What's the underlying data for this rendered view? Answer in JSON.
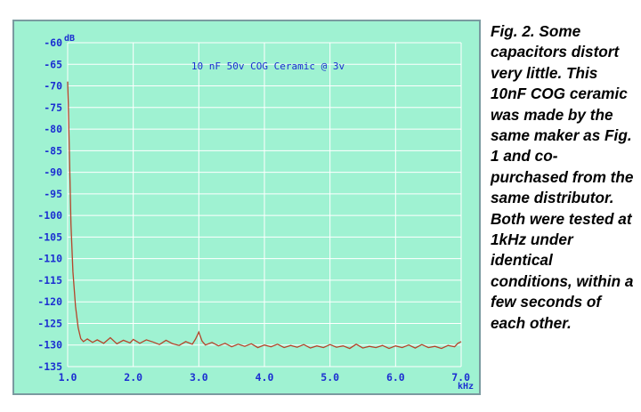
{
  "colors": {
    "plot_background": "#9ff2d2",
    "grid": "#ffffff",
    "tick_text": "#1c2fd1",
    "trace": "#b5442a",
    "frame": "#7a9aa0"
  },
  "caption": "Fig. 2. Some capacitors distort very little. This 10nF COG ceramic was made by the same maker as Fig. 1 and co-purchased from the same distributor. Both were tested at 1kHz under identical conditions, within a few seconds of each other.",
  "chart_data": {
    "type": "line",
    "title": "10 nF 50v COG Ceramic @ 3v",
    "xlabel": "kHz",
    "ylabel": "dB",
    "xlim": [
      1.0,
      7.0
    ],
    "ylim": [
      -135,
      -60
    ],
    "x_ticks": [
      "1.0",
      "2.0",
      "3.0",
      "4.0",
      "5.0",
      "6.0",
      "7.0"
    ],
    "y_ticks": [
      "-60",
      "-65",
      "-70",
      "-75",
      "-80",
      "-85",
      "-90",
      "-95",
      "-100",
      "-105",
      "-110",
      "-115",
      "-120",
      "-125",
      "-130",
      "-135"
    ],
    "grid": true,
    "series": [
      {
        "x": [
          1.0,
          1.01,
          1.03,
          1.05,
          1.08,
          1.12,
          1.16,
          1.2,
          1.24,
          1.3,
          1.38,
          1.45,
          1.55,
          1.65,
          1.75,
          1.85,
          1.95,
          2.0,
          2.1,
          2.2,
          2.3,
          2.4,
          2.5,
          2.6,
          2.7,
          2.8,
          2.9,
          2.95,
          3.0,
          3.05,
          3.1,
          3.2,
          3.3,
          3.4,
          3.5,
          3.6,
          3.7,
          3.8,
          3.9,
          4.0,
          4.1,
          4.2,
          4.3,
          4.4,
          4.5,
          4.6,
          4.7,
          4.8,
          4.9,
          5.0,
          5.1,
          5.2,
          5.3,
          5.4,
          5.5,
          5.6,
          5.7,
          5.8,
          5.9,
          6.0,
          6.1,
          6.2,
          6.3,
          6.4,
          6.5,
          6.6,
          6.7,
          6.8,
          6.9,
          6.95,
          7.0
        ],
        "y": [
          -69,
          -74,
          -88,
          -102,
          -113,
          -121,
          -126,
          -128.5,
          -129.2,
          -128.6,
          -129.4,
          -128.8,
          -129.6,
          -128.3,
          -129.7,
          -128.9,
          -129.5,
          -128.7,
          -129.6,
          -128.8,
          -129.3,
          -129.9,
          -128.9,
          -129.7,
          -130.1,
          -129.2,
          -129.8,
          -128.6,
          -127.0,
          -129.1,
          -130.0,
          -129.4,
          -130.2,
          -129.6,
          -130.4,
          -129.8,
          -130.3,
          -129.7,
          -130.6,
          -130.0,
          -130.4,
          -129.8,
          -130.6,
          -130.1,
          -130.5,
          -129.9,
          -130.7,
          -130.2,
          -130.6,
          -129.9,
          -130.5,
          -130.2,
          -130.8,
          -129.8,
          -130.7,
          -130.3,
          -130.6,
          -130.1,
          -130.8,
          -130.2,
          -130.6,
          -130.0,
          -130.7,
          -129.9,
          -130.6,
          -130.3,
          -130.8,
          -130.1,
          -130.4,
          -129.6,
          -129.2
        ]
      }
    ]
  }
}
